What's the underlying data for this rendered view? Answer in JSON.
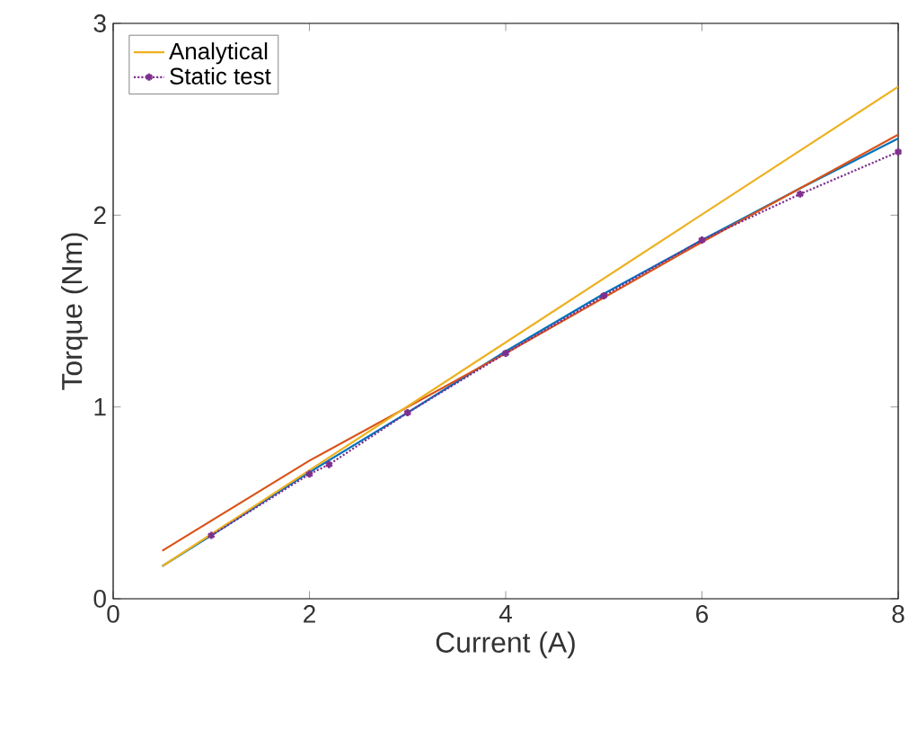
{
  "chart_data": {
    "type": "line",
    "xlabel": "Current (A)",
    "ylabel": "Torque (Nm)",
    "xlim": [
      0,
      8
    ],
    "ylim": [
      0,
      3
    ],
    "xticks": [
      0,
      2,
      4,
      6,
      8
    ],
    "yticks": [
      0,
      1,
      2,
      3
    ],
    "legend": "top left",
    "series": [
      {
        "color": "#0072bd",
        "x": [
          0.5,
          1,
          2,
          3,
          4,
          5,
          6,
          7,
          8
        ],
        "values": [
          0.17,
          0.33,
          0.66,
          0.97,
          1.29,
          1.59,
          1.87,
          2.14,
          2.4
        ]
      },
      {
        "color": "#d95319",
        "x": [
          0.5,
          2,
          4,
          6,
          8
        ],
        "values": [
          0.25,
          0.72,
          1.28,
          1.86,
          2.42
        ]
      },
      {
        "name": "Analytical",
        "color": "#edb120",
        "x": [
          0.5,
          8
        ],
        "values": [
          0.17,
          2.67
        ]
      },
      {
        "name": "Static test",
        "color": "#7e2f8e",
        "marker": "cross",
        "line_style": "dotted",
        "x": [
          1,
          2,
          2.2,
          3,
          4,
          5,
          6,
          7,
          8
        ],
        "values": [
          0.33,
          0.65,
          0.7,
          0.97,
          1.28,
          1.58,
          1.87,
          2.11,
          2.33
        ]
      }
    ]
  }
}
